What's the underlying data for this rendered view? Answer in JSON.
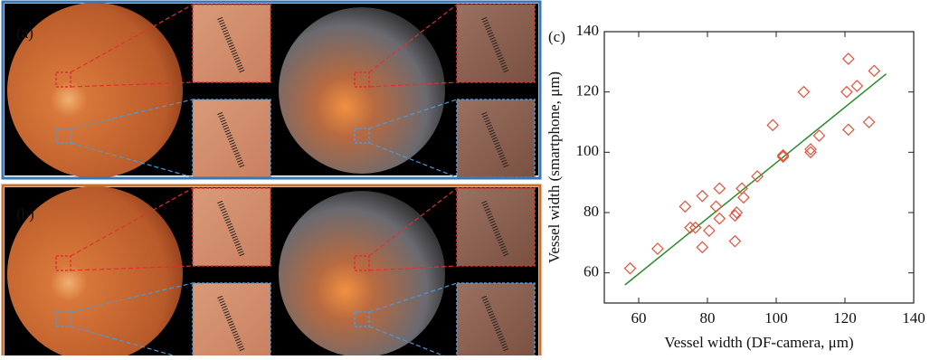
{
  "figure": {
    "labels": [
      "(a)",
      "(b)"
    ]
  },
  "chart_data": {
    "type": "scatter",
    "panel_label": "(c)",
    "x_label": "Vessel width (DF-camera, μm)",
    "y_label": "Vessel width (smartphone, μm)",
    "series": [
      {
        "color": "#e0503a",
        "x": [
          57.5,
          65.5,
          73.5,
          75,
          76.5,
          78.5,
          78.5,
          80.5,
          83.5,
          82.5,
          83.5,
          88,
          88.5,
          88,
          90,
          90.5,
          94.5,
          99,
          102,
          102,
          108,
          110,
          110,
          112.5,
          120.5,
          121,
          121,
          123.5,
          127,
          128.5
        ],
        "values": [
          61.5,
          68,
          82,
          75,
          75,
          85.5,
          68.5,
          74,
          88,
          82,
          78,
          79,
          80,
          70.5,
          88,
          85,
          92,
          109,
          99,
          98.5,
          120,
          101,
          100,
          105.5,
          120,
          131,
          107.5,
          122,
          110,
          127
        ]
      }
    ],
    "fit_line": {
      "x": [
        56,
        132
      ],
      "values": [
        56,
        126
      ],
      "color": "#2a8a2a"
    },
    "xlim": [
      50,
      140
    ],
    "ylim": [
      50,
      140
    ],
    "xticks": [
      60,
      80,
      100,
      120,
      140
    ],
    "yticks": [
      60,
      80,
      100,
      120,
      140
    ]
  }
}
